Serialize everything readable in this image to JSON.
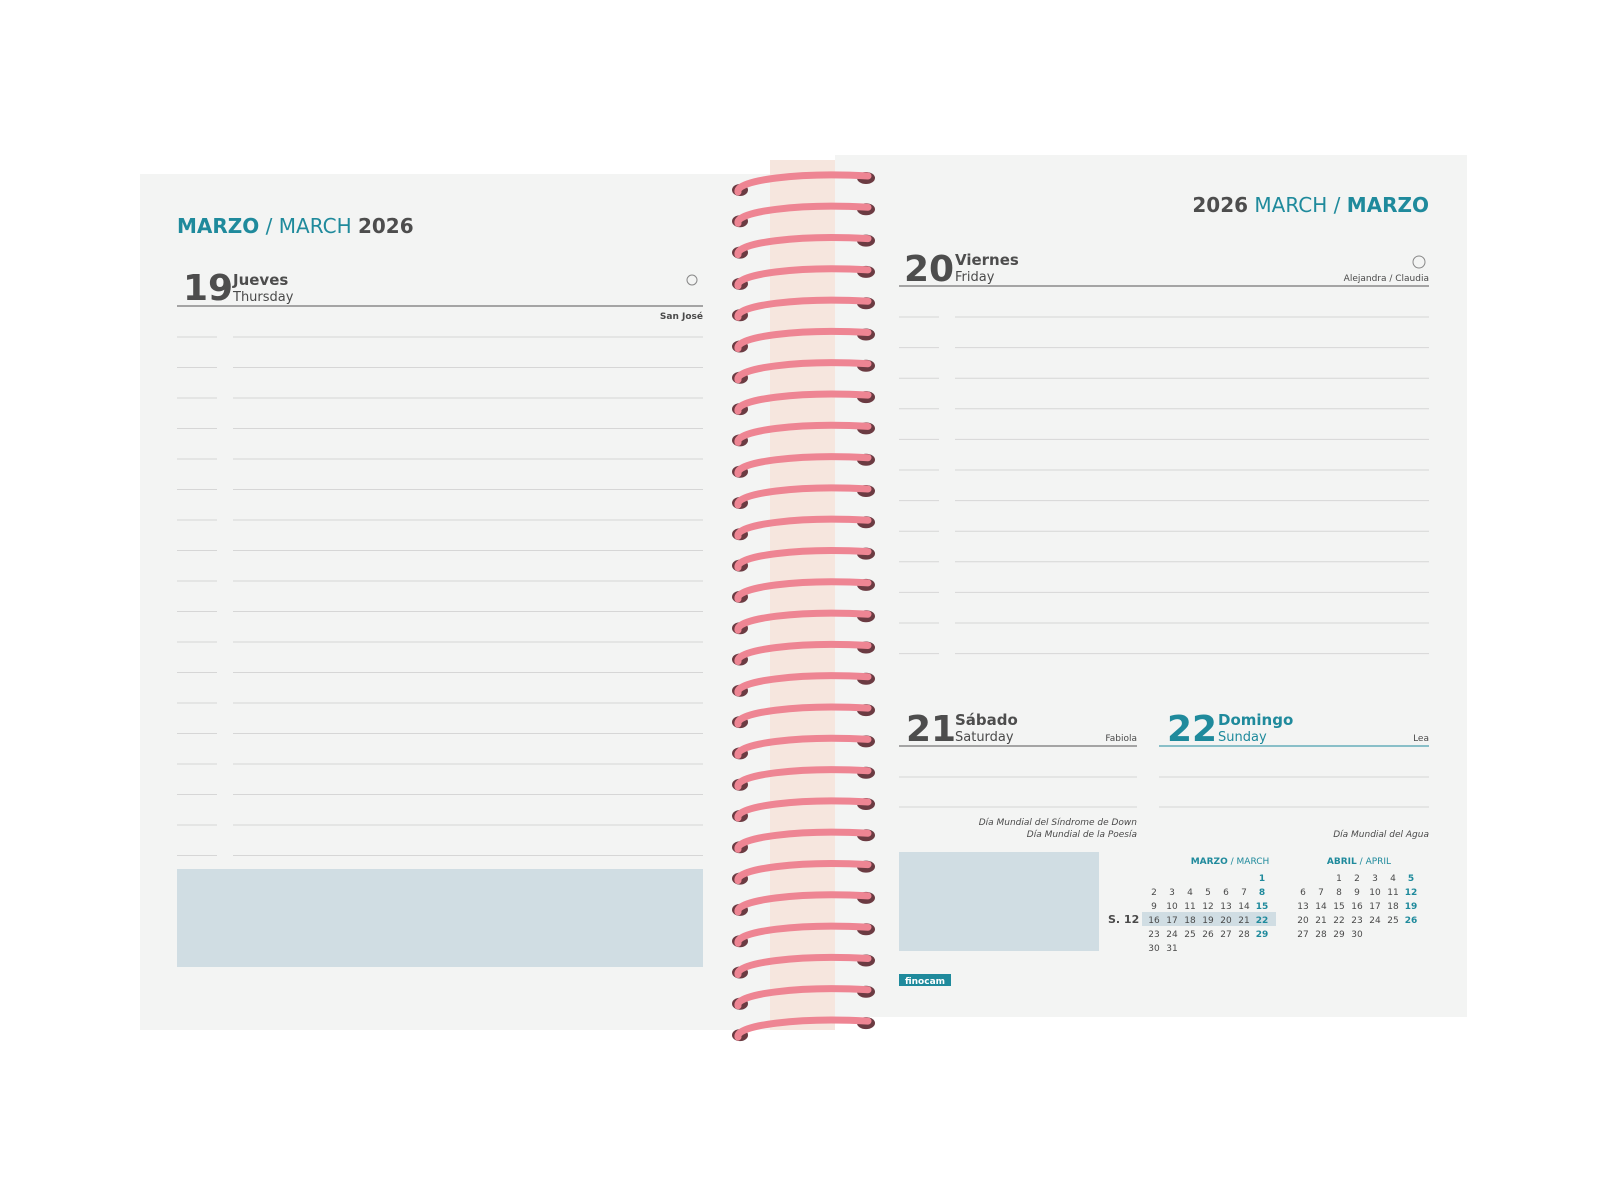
{
  "left_page": {
    "header": {
      "month_es": "MARZO",
      "sep": "/",
      "month_en": "MARCH",
      "year": "2026"
    },
    "day": {
      "number": "19",
      "name_es": "Jueves",
      "name_en": "Thursday",
      "saint": "San José"
    }
  },
  "right_page": {
    "header": {
      "year": "2026",
      "month_en": "MARCH",
      "sep": "/",
      "month_es": "MARZO"
    },
    "day_20": {
      "number": "20",
      "name_es": "Viernes",
      "name_en": "Friday",
      "saint": "Alejandra / Claudia"
    },
    "day_21": {
      "number": "21",
      "name_es": "Sábado",
      "name_en": "Saturday",
      "saint": "Fabiola",
      "notes": [
        "Día Mundial del Síndrome de Down",
        "Día Mundial de la Poesía"
      ]
    },
    "day_22": {
      "number": "22",
      "name_es": "Domingo",
      "name_en": "Sunday",
      "saint": "Lea",
      "notes": [
        "Día Mundial del Agua"
      ]
    },
    "week_label": "S. 12",
    "mini_calendars": [
      {
        "title_es": "MARZO",
        "sep": "/",
        "title_en": "MARCH",
        "weeks": [
          [
            null,
            null,
            null,
            null,
            null,
            null,
            1
          ],
          [
            2,
            3,
            4,
            5,
            6,
            7,
            8
          ],
          [
            9,
            10,
            11,
            12,
            13,
            14,
            15
          ],
          [
            16,
            17,
            18,
            19,
            20,
            21,
            22
          ],
          [
            23,
            24,
            25,
            26,
            27,
            28,
            29
          ],
          [
            30,
            31
          ]
        ]
      },
      {
        "title_es": "ABRIL",
        "sep": "/",
        "title_en": "APRIL",
        "weeks": [
          [
            null,
            null,
            1,
            2,
            3,
            4,
            5
          ],
          [
            6,
            7,
            8,
            9,
            10,
            11,
            12
          ],
          [
            13,
            14,
            15,
            16,
            17,
            18,
            19
          ],
          [
            20,
            21,
            22,
            23,
            24,
            25,
            26
          ],
          [
            27,
            28,
            29,
            30
          ]
        ]
      }
    ],
    "brand": "finocam"
  }
}
